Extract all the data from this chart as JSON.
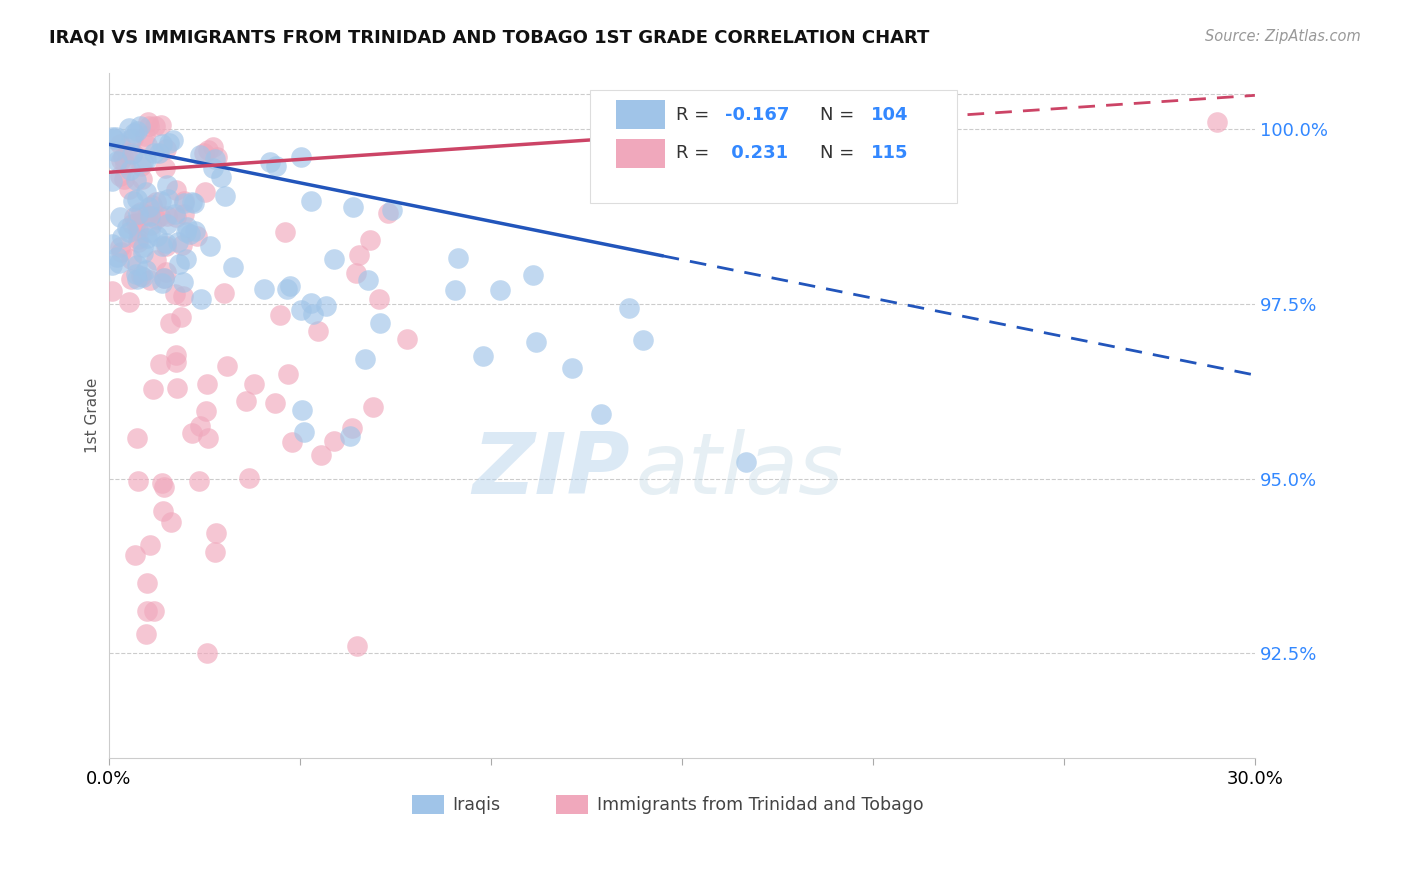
{
  "title": "IRAQI VS IMMIGRANTS FROM TRINIDAD AND TOBAGO 1ST GRADE CORRELATION CHART",
  "source": "Source: ZipAtlas.com",
  "ylabel": "1st Grade",
  "xlim": [
    0.0,
    0.3
  ],
  "ylim": [
    0.91,
    1.008
  ],
  "yticks": [
    0.925,
    0.95,
    0.975,
    1.0
  ],
  "ytick_labels": [
    "92.5%",
    "95.0%",
    "97.5%",
    "100.0%"
  ],
  "legend_R1": "-0.167",
  "legend_N1": "104",
  "legend_R2": "0.231",
  "legend_N2": "115",
  "blue_color": "#a0c4e8",
  "pink_color": "#f0a8bc",
  "blue_line_color": "#2255bb",
  "pink_line_color": "#cc4466",
  "watermark_zip": "ZIP",
  "watermark_atlas": "atlas",
  "background_color": "#ffffff",
  "blue_line_x0": 0.0,
  "blue_line_y0": 0.9978,
  "blue_line_x1": 0.3,
  "blue_line_y1": 0.9648,
  "pink_line_x0": 0.0,
  "pink_line_y0": 0.9938,
  "pink_line_x1": 0.3,
  "pink_line_y1": 1.0048,
  "solid_cutoff": 0.145
}
